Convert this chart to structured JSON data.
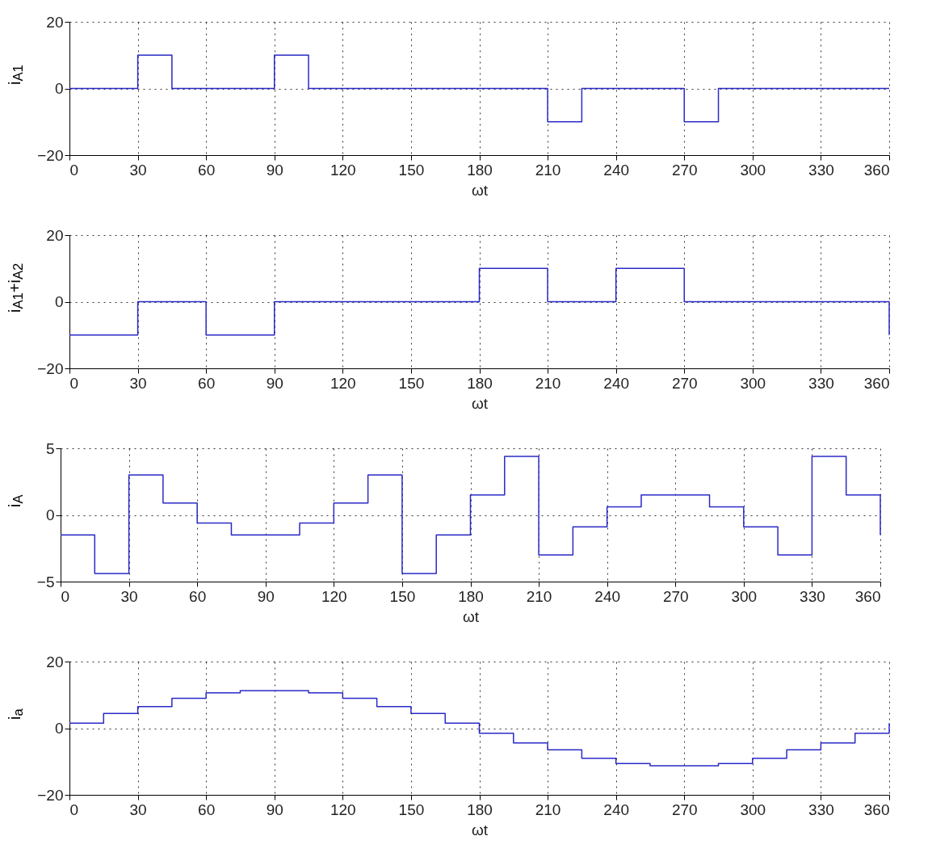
{
  "chart_data": [
    {
      "type": "step",
      "xlabel": "ωt",
      "ylabel": "i$_{A1}$",
      "x": [
        0,
        30,
        45,
        90,
        105,
        210,
        225,
        270,
        285,
        360
      ],
      "xlim": [
        0,
        360
      ],
      "xticks": [
        0,
        30,
        60,
        90,
        120,
        150,
        180,
        210,
        240,
        270,
        300,
        330,
        360
      ],
      "ylim": [
        -20,
        20
      ],
      "yticks": [
        -20,
        0,
        20
      ],
      "grid": true,
      "series": [
        {
          "color": "#2a2ac8",
          "values": [
            0,
            10,
            0,
            10,
            0,
            -10,
            0,
            -10,
            0,
            0
          ]
        }
      ]
    },
    {
      "type": "step",
      "xlabel": "ωt",
      "ylabel": "i$_{A1}$+i$_{A2}$",
      "x": [
        0,
        30,
        60,
        90,
        180,
        210,
        240,
        270,
        360
      ],
      "xlim": [
        0,
        360
      ],
      "xticks": [
        0,
        30,
        60,
        90,
        120,
        150,
        180,
        210,
        240,
        270,
        300,
        330,
        360
      ],
      "ylim": [
        -20,
        20
      ],
      "yticks": [
        -20,
        0,
        20
      ],
      "grid": true,
      "series": [
        {
          "color": "#2a2ac8",
          "values": [
            -10,
            0,
            -10,
            0,
            10,
            0,
            10,
            0,
            -10
          ]
        }
      ]
    },
    {
      "type": "step",
      "xlabel": "ωt",
      "ylabel": "i$_{A}$",
      "x": [
        0,
        15,
        30,
        45,
        60,
        75,
        105,
        120,
        135,
        150,
        165,
        180,
        195,
        210,
        225,
        240,
        255,
        285,
        300,
        315,
        330,
        345,
        360
      ],
      "xlim": [
        0,
        360
      ],
      "xticks": [
        0,
        30,
        60,
        90,
        120,
        150,
        180,
        210,
        240,
        270,
        300,
        330,
        360
      ],
      "ylim": [
        -5,
        5
      ],
      "yticks": [
        -5,
        0,
        5
      ],
      "grid": true,
      "series": [
        {
          "color": "#2a2ac8",
          "values": [
            -1.5,
            -4.4,
            3,
            0.9,
            -0.6,
            -1.5,
            -0.6,
            0.9,
            3,
            -4.4,
            -1.5,
            1.5,
            4.4,
            -3,
            -0.9,
            0.6,
            1.5,
            0.6,
            -0.9,
            -3,
            4.4,
            1.5,
            -1.5
          ]
        }
      ]
    },
    {
      "type": "step",
      "xlabel": "ωt",
      "ylabel": "i$_{a}$",
      "x": [
        0,
        15,
        30,
        45,
        60,
        75,
        105,
        120,
        135,
        150,
        165,
        180,
        195,
        210,
        225,
        240,
        255,
        285,
        300,
        315,
        330,
        345,
        360
      ],
      "xlim": [
        0,
        360
      ],
      "xticks": [
        0,
        30,
        60,
        90,
        120,
        150,
        180,
        210,
        240,
        270,
        300,
        330,
        360
      ],
      "ylim": [
        -20,
        20
      ],
      "yticks": [
        -20,
        0,
        20
      ],
      "grid": true,
      "series": [
        {
          "color": "#2a2ac8",
          "values": [
            1.5,
            4.4,
            6.5,
            9,
            10.6,
            11.3,
            10.6,
            9,
            6.5,
            4.4,
            1.5,
            -1.5,
            -4.4,
            -6.5,
            -9,
            -10.6,
            -11.3,
            -10.6,
            -9,
            -6.5,
            -4.4,
            -1.5,
            1.5
          ]
        }
      ]
    }
  ]
}
